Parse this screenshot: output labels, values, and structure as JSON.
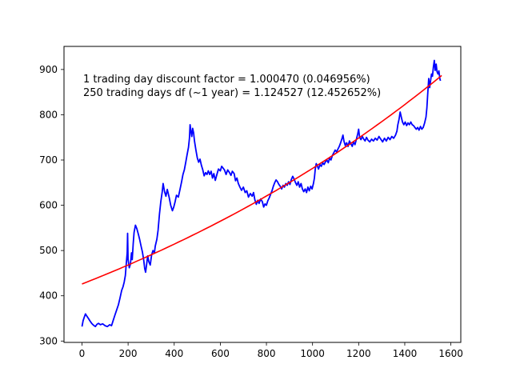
{
  "chart_data": {
    "type": "line",
    "title": "",
    "xlabel": "",
    "ylabel": "",
    "xlim": [
      -78,
      1643
    ],
    "ylim": [
      297,
      951
    ],
    "grid": false,
    "x_ticks": [
      0,
      200,
      400,
      600,
      800,
      1000,
      1200,
      1400,
      1600
    ],
    "y_ticks": [
      300,
      400,
      500,
      600,
      700,
      800,
      900
    ],
    "annotations": [
      "1 trading day discount factor = 1.000470 (0.046956%)",
      "250 trading days df (~1 year) = 1.124527 (12.452652%)"
    ],
    "series": [
      {
        "color": "#0000ff",
        "points": [
          [
            0,
            332
          ],
          [
            5,
            345
          ],
          [
            10,
            353
          ],
          [
            15,
            360
          ],
          [
            20,
            356
          ],
          [
            28,
            350
          ],
          [
            35,
            344
          ],
          [
            42,
            339
          ],
          [
            50,
            335
          ],
          [
            58,
            332
          ],
          [
            65,
            337
          ],
          [
            72,
            339
          ],
          [
            80,
            336
          ],
          [
            90,
            338
          ],
          [
            100,
            334
          ],
          [
            110,
            332
          ],
          [
            120,
            336
          ],
          [
            128,
            334
          ],
          [
            135,
            345
          ],
          [
            142,
            356
          ],
          [
            150,
            368
          ],
          [
            158,
            380
          ],
          [
            165,
            395
          ],
          [
            172,
            412
          ],
          [
            178,
            420
          ],
          [
            183,
            430
          ],
          [
            188,
            445
          ],
          [
            192,
            470
          ],
          [
            196,
            495
          ],
          [
            198,
            538
          ],
          [
            200,
            480
          ],
          [
            205,
            462
          ],
          [
            210,
            470
          ],
          [
            215,
            495
          ],
          [
            218,
            480
          ],
          [
            222,
            515
          ],
          [
            226,
            540
          ],
          [
            232,
            556
          ],
          [
            238,
            548
          ],
          [
            244,
            537
          ],
          [
            250,
            525
          ],
          [
            256,
            510
          ],
          [
            262,
            497
          ],
          [
            268,
            478
          ],
          [
            272,
            460
          ],
          [
            276,
            452
          ],
          [
            280,
            468
          ],
          [
            285,
            488
          ],
          [
            290,
            475
          ],
          [
            296,
            468
          ],
          [
            302,
            490
          ],
          [
            308,
            500
          ],
          [
            314,
            495
          ],
          [
            318,
            510
          ],
          [
            325,
            525
          ],
          [
            330,
            545
          ],
          [
            336,
            580
          ],
          [
            342,
            608
          ],
          [
            348,
            630
          ],
          [
            352,
            648
          ],
          [
            358,
            630
          ],
          [
            364,
            620
          ],
          [
            370,
            635
          ],
          [
            378,
            618
          ],
          [
            385,
            600
          ],
          [
            392,
            588
          ],
          [
            398,
            596
          ],
          [
            404,
            608
          ],
          [
            410,
            622
          ],
          [
            418,
            618
          ],
          [
            425,
            635
          ],
          [
            432,
            652
          ],
          [
            438,
            668
          ],
          [
            444,
            678
          ],
          [
            450,
            695
          ],
          [
            456,
            712
          ],
          [
            462,
            728
          ],
          [
            466,
            748
          ],
          [
            469,
            778
          ],
          [
            472,
            765
          ],
          [
            476,
            752
          ],
          [
            480,
            770
          ],
          [
            484,
            760
          ],
          [
            488,
            742
          ],
          [
            494,
            722
          ],
          [
            500,
            705
          ],
          [
            506,
            695
          ],
          [
            512,
            702
          ],
          [
            518,
            688
          ],
          [
            524,
            678
          ],
          [
            530,
            665
          ],
          [
            536,
            672
          ],
          [
            542,
            668
          ],
          [
            548,
            676
          ],
          [
            554,
            668
          ],
          [
            560,
            675
          ],
          [
            566,
            660
          ],
          [
            572,
            670
          ],
          [
            578,
            655
          ],
          [
            585,
            668
          ],
          [
            592,
            680
          ],
          [
            600,
            676
          ],
          [
            606,
            686
          ],
          [
            612,
            682
          ],
          [
            618,
            678
          ],
          [
            625,
            668
          ],
          [
            632,
            678
          ],
          [
            640,
            672
          ],
          [
            646,
            666
          ],
          [
            652,
            675
          ],
          [
            660,
            670
          ],
          [
            666,
            654
          ],
          [
            672,
            660
          ],
          [
            678,
            648
          ],
          [
            685,
            640
          ],
          [
            692,
            633
          ],
          [
            700,
            640
          ],
          [
            708,
            628
          ],
          [
            715,
            632
          ],
          [
            722,
            618
          ],
          [
            730,
            626
          ],
          [
            738,
            620
          ],
          [
            744,
            628
          ],
          [
            750,
            612
          ],
          [
            756,
            602
          ],
          [
            762,
            611
          ],
          [
            768,
            604
          ],
          [
            775,
            614
          ],
          [
            782,
            608
          ],
          [
            788,
            596
          ],
          [
            794,
            603
          ],
          [
            800,
            600
          ],
          [
            806,
            610
          ],
          [
            812,
            616
          ],
          [
            818,
            624
          ],
          [
            824,
            632
          ],
          [
            830,
            642
          ],
          [
            836,
            650
          ],
          [
            842,
            656
          ],
          [
            848,
            652
          ],
          [
            854,
            646
          ],
          [
            860,
            642
          ],
          [
            866,
            636
          ],
          [
            872,
            644
          ],
          [
            878,
            640
          ],
          [
            884,
            648
          ],
          [
            890,
            644
          ],
          [
            896,
            652
          ],
          [
            902,
            646
          ],
          [
            908,
            657
          ],
          [
            914,
            664
          ],
          [
            920,
            658
          ],
          [
            926,
            650
          ],
          [
            932,
            644
          ],
          [
            938,
            652
          ],
          [
            944,
            640
          ],
          [
            950,
            648
          ],
          [
            956,
            636
          ],
          [
            962,
            630
          ],
          [
            968,
            636
          ],
          [
            974,
            628
          ],
          [
            980,
            640
          ],
          [
            986,
            632
          ],
          [
            992,
            642
          ],
          [
            998,
            636
          ],
          [
            1004,
            648
          ],
          [
            1008,
            660
          ],
          [
            1012,
            680
          ],
          [
            1016,
            692
          ],
          [
            1020,
            688
          ],
          [
            1026,
            680
          ],
          [
            1032,
            690
          ],
          [
            1038,
            686
          ],
          [
            1044,
            694
          ],
          [
            1050,
            690
          ],
          [
            1056,
            696
          ],
          [
            1062,
            700
          ],
          [
            1068,
            694
          ],
          [
            1074,
            704
          ],
          [
            1080,
            700
          ],
          [
            1086,
            710
          ],
          [
            1092,
            716
          ],
          [
            1098,
            722
          ],
          [
            1104,
            718
          ],
          [
            1110,
            724
          ],
          [
            1116,
            730
          ],
          [
            1122,
            738
          ],
          [
            1128,
            748
          ],
          [
            1132,
            755
          ],
          [
            1136,
            742
          ],
          [
            1142,
            732
          ],
          [
            1148,
            738
          ],
          [
            1154,
            730
          ],
          [
            1160,
            742
          ],
          [
            1166,
            736
          ],
          [
            1172,
            730
          ],
          [
            1178,
            740
          ],
          [
            1184,
            734
          ],
          [
            1190,
            745
          ],
          [
            1196,
            758
          ],
          [
            1200,
            768
          ],
          [
            1204,
            750
          ],
          [
            1210,
            745
          ],
          [
            1216,
            752
          ],
          [
            1222,
            746
          ],
          [
            1228,
            742
          ],
          [
            1234,
            750
          ],
          [
            1240,
            744
          ],
          [
            1248,
            740
          ],
          [
            1256,
            746
          ],
          [
            1264,
            742
          ],
          [
            1272,
            748
          ],
          [
            1280,
            744
          ],
          [
            1288,
            752
          ],
          [
            1296,
            746
          ],
          [
            1304,
            740
          ],
          [
            1312,
            748
          ],
          [
            1320,
            742
          ],
          [
            1328,
            750
          ],
          [
            1336,
            745
          ],
          [
            1344,
            752
          ],
          [
            1352,
            748
          ],
          [
            1360,
            755
          ],
          [
            1366,
            764
          ],
          [
            1370,
            778
          ],
          [
            1375,
            790
          ],
          [
            1380,
            806
          ],
          [
            1385,
            795
          ],
          [
            1390,
            784
          ],
          [
            1396,
            778
          ],
          [
            1402,
            784
          ],
          [
            1408,
            776
          ],
          [
            1414,
            782
          ],
          [
            1420,
            778
          ],
          [
            1426,
            784
          ],
          [
            1432,
            778
          ],
          [
            1438,
            776
          ],
          [
            1444,
            772
          ],
          [
            1450,
            768
          ],
          [
            1456,
            772
          ],
          [
            1462,
            766
          ],
          [
            1468,
            774
          ],
          [
            1474,
            768
          ],
          [
            1480,
            772
          ],
          [
            1486,
            782
          ],
          [
            1492,
            795
          ],
          [
            1496,
            815
          ],
          [
            1500,
            850
          ],
          [
            1504,
            880
          ],
          [
            1508,
            860
          ],
          [
            1512,
            875
          ],
          [
            1516,
            890
          ],
          [
            1520,
            885
          ],
          [
            1524,
            905
          ],
          [
            1528,
            920
          ],
          [
            1532,
            898
          ],
          [
            1536,
            912
          ],
          [
            1540,
            895
          ],
          [
            1544,
            890
          ],
          [
            1548,
            897
          ],
          [
            1552,
            880
          ],
          [
            1555,
            875
          ]
        ]
      },
      {
        "color": "#ff0000",
        "fit": {
          "a": 426,
          "b": 1.00047
        },
        "x_range": [
          0,
          1560
        ]
      }
    ]
  }
}
